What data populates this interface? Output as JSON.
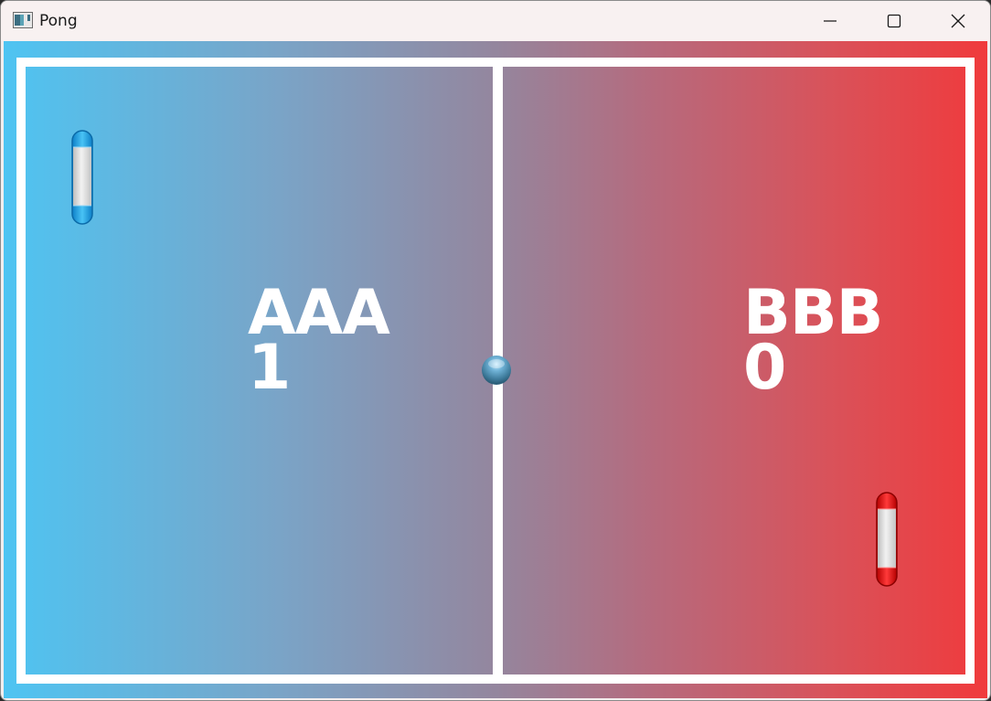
{
  "window": {
    "title": "Pong",
    "icons": {
      "app": "app-window-icon",
      "minimize": "minimize-icon",
      "maximize": "maximize-icon",
      "close": "close-icon"
    }
  },
  "game": {
    "players": [
      {
        "name": "AAA",
        "score": "1",
        "color": "#1ea0e6"
      },
      {
        "name": "BBB",
        "score": "0",
        "color": "#e01515"
      }
    ],
    "colors": {
      "left_background": "#4ec4f2",
      "right_background": "#f03a3c",
      "court_lines": "#ffffff",
      "ball": "#5f9dbd"
    }
  }
}
